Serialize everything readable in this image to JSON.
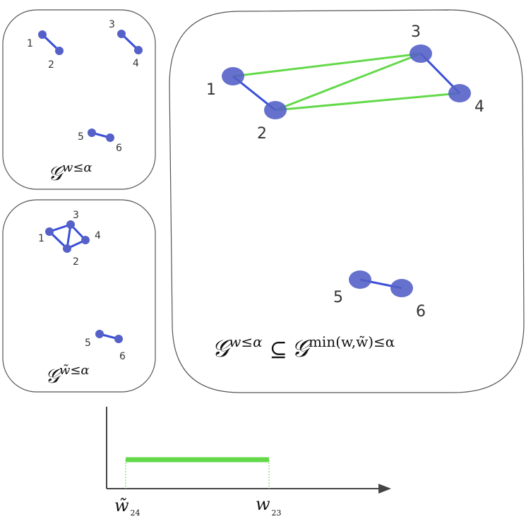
{
  "colors": {
    "node": "#5560c8",
    "edge_blue": "#3b4fd8",
    "edge_green": "#63d94a",
    "panel_stroke": "#555555",
    "axis": "#444444",
    "text": "#333333"
  },
  "panels": {
    "top_left": {
      "caption_script": "𝒢",
      "caption_super": "w≤α",
      "nodes": [
        "1",
        "2",
        "3",
        "4",
        "5",
        "6"
      ]
    },
    "bottom_left": {
      "caption_script": "𝒢",
      "caption_super": "w̃≤α",
      "nodes": [
        "1",
        "2",
        "3",
        "4",
        "5",
        "6"
      ]
    },
    "right": {
      "caption_lhs_script": "𝒢",
      "caption_lhs_super": "w≤α",
      "caption_subset": "⊆",
      "caption_rhs_script": "𝒢",
      "caption_rhs_super": "min(w,w̃)≤α",
      "nodes": [
        "1",
        "2",
        "3",
        "4",
        "5",
        "6"
      ]
    }
  },
  "timeline": {
    "start_symbol": "w̃",
    "start_sub": "24",
    "end_symbol": "w",
    "end_sub": "23",
    "bar_color": "#63d94a"
  }
}
